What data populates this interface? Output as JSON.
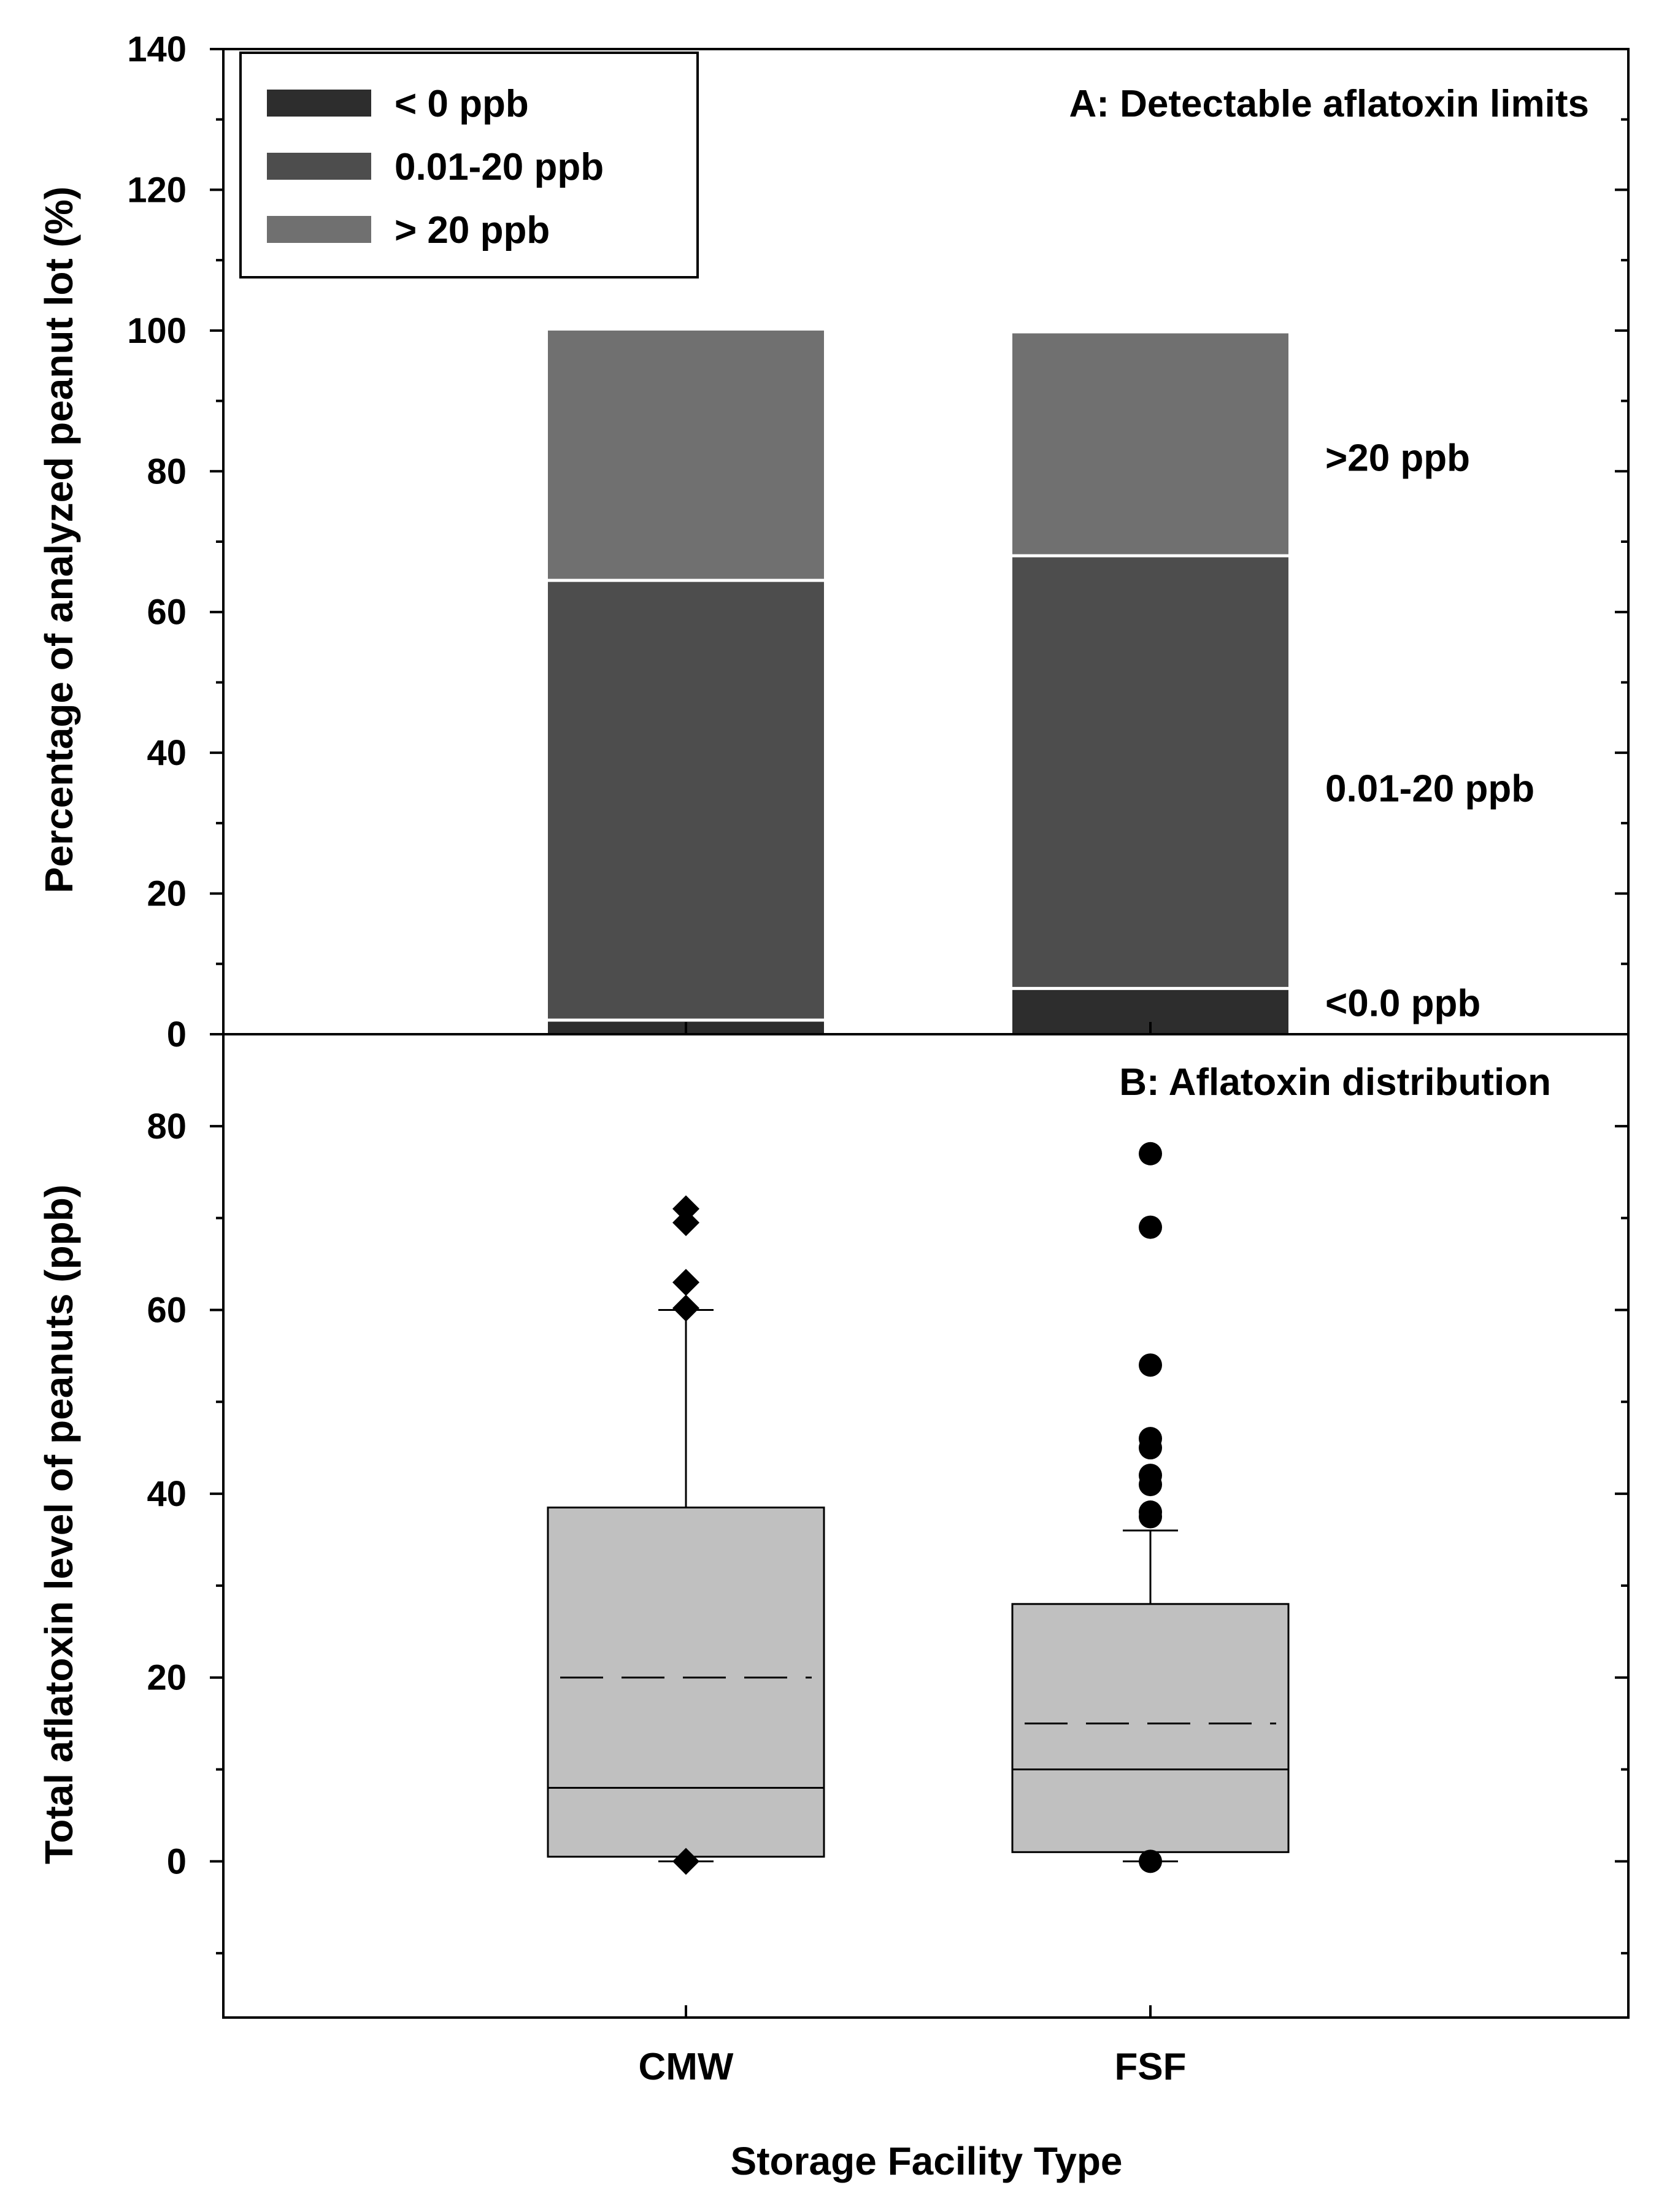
{
  "chart_data": [
    {
      "panel": "A",
      "type": "bar",
      "stacked": true,
      "title": "A: Detectable aflatoxin limits",
      "ylabel": "Percentage  of  analyzed peanut  lot  (%)",
      "xlabel": "Storage Facility  Type",
      "categories": [
        "CMW",
        "FSF"
      ],
      "ylim": [
        0,
        140
      ],
      "yticks": [
        0,
        20,
        40,
        60,
        80,
        100,
        120,
        140
      ],
      "series": [
        {
          "name": "< 0 ppb",
          "values": [
            2,
            6.5
          ],
          "color": "#2d2d2d"
        },
        {
          "name": "0.01-20 ppb",
          "values": [
            62.5,
            61.5
          ],
          "color": "#4d4d4d"
        },
        {
          "name": "> 20 ppb",
          "values": [
            35.5,
            31.6
          ],
          "color": "#707070"
        }
      ],
      "annotations": [
        {
          "text": ">20 ppb",
          "y": 82
        },
        {
          "text": "0.01-20 ppb",
          "y": 35
        },
        {
          "text": "<0.0 ppb",
          "y": 4.5
        }
      ],
      "legend_position": "top-left"
    },
    {
      "panel": "B",
      "type": "box",
      "title": "B: Aflatoxin distribution",
      "ylabel": "Total  aflatoxin  level of peanuts  (ppb)",
      "xlabel": "Storage Facility  Type",
      "categories": [
        "CMW",
        "FSF"
      ],
      "ylim": [
        -17,
        90
      ],
      "yticks": [
        0,
        20,
        40,
        60,
        80
      ],
      "boxes": [
        {
          "category": "CMW",
          "q1": 0.5,
          "median": 8,
          "q3": 38.5,
          "mean": 20,
          "whisker_low": 0,
          "whisker_high": 60,
          "outliers": [
            71,
            69.5,
            63,
            60.2,
            0
          ],
          "marker": "diamond"
        },
        {
          "category": "FSF",
          "q1": 1,
          "median": 10,
          "q3": 28,
          "mean": 15,
          "whisker_low": 0,
          "whisker_high": 36,
          "outliers": [
            77,
            69,
            54,
            46,
            45,
            42,
            41,
            38,
            37.5,
            0
          ],
          "marker": "circle"
        }
      ]
    }
  ]
}
